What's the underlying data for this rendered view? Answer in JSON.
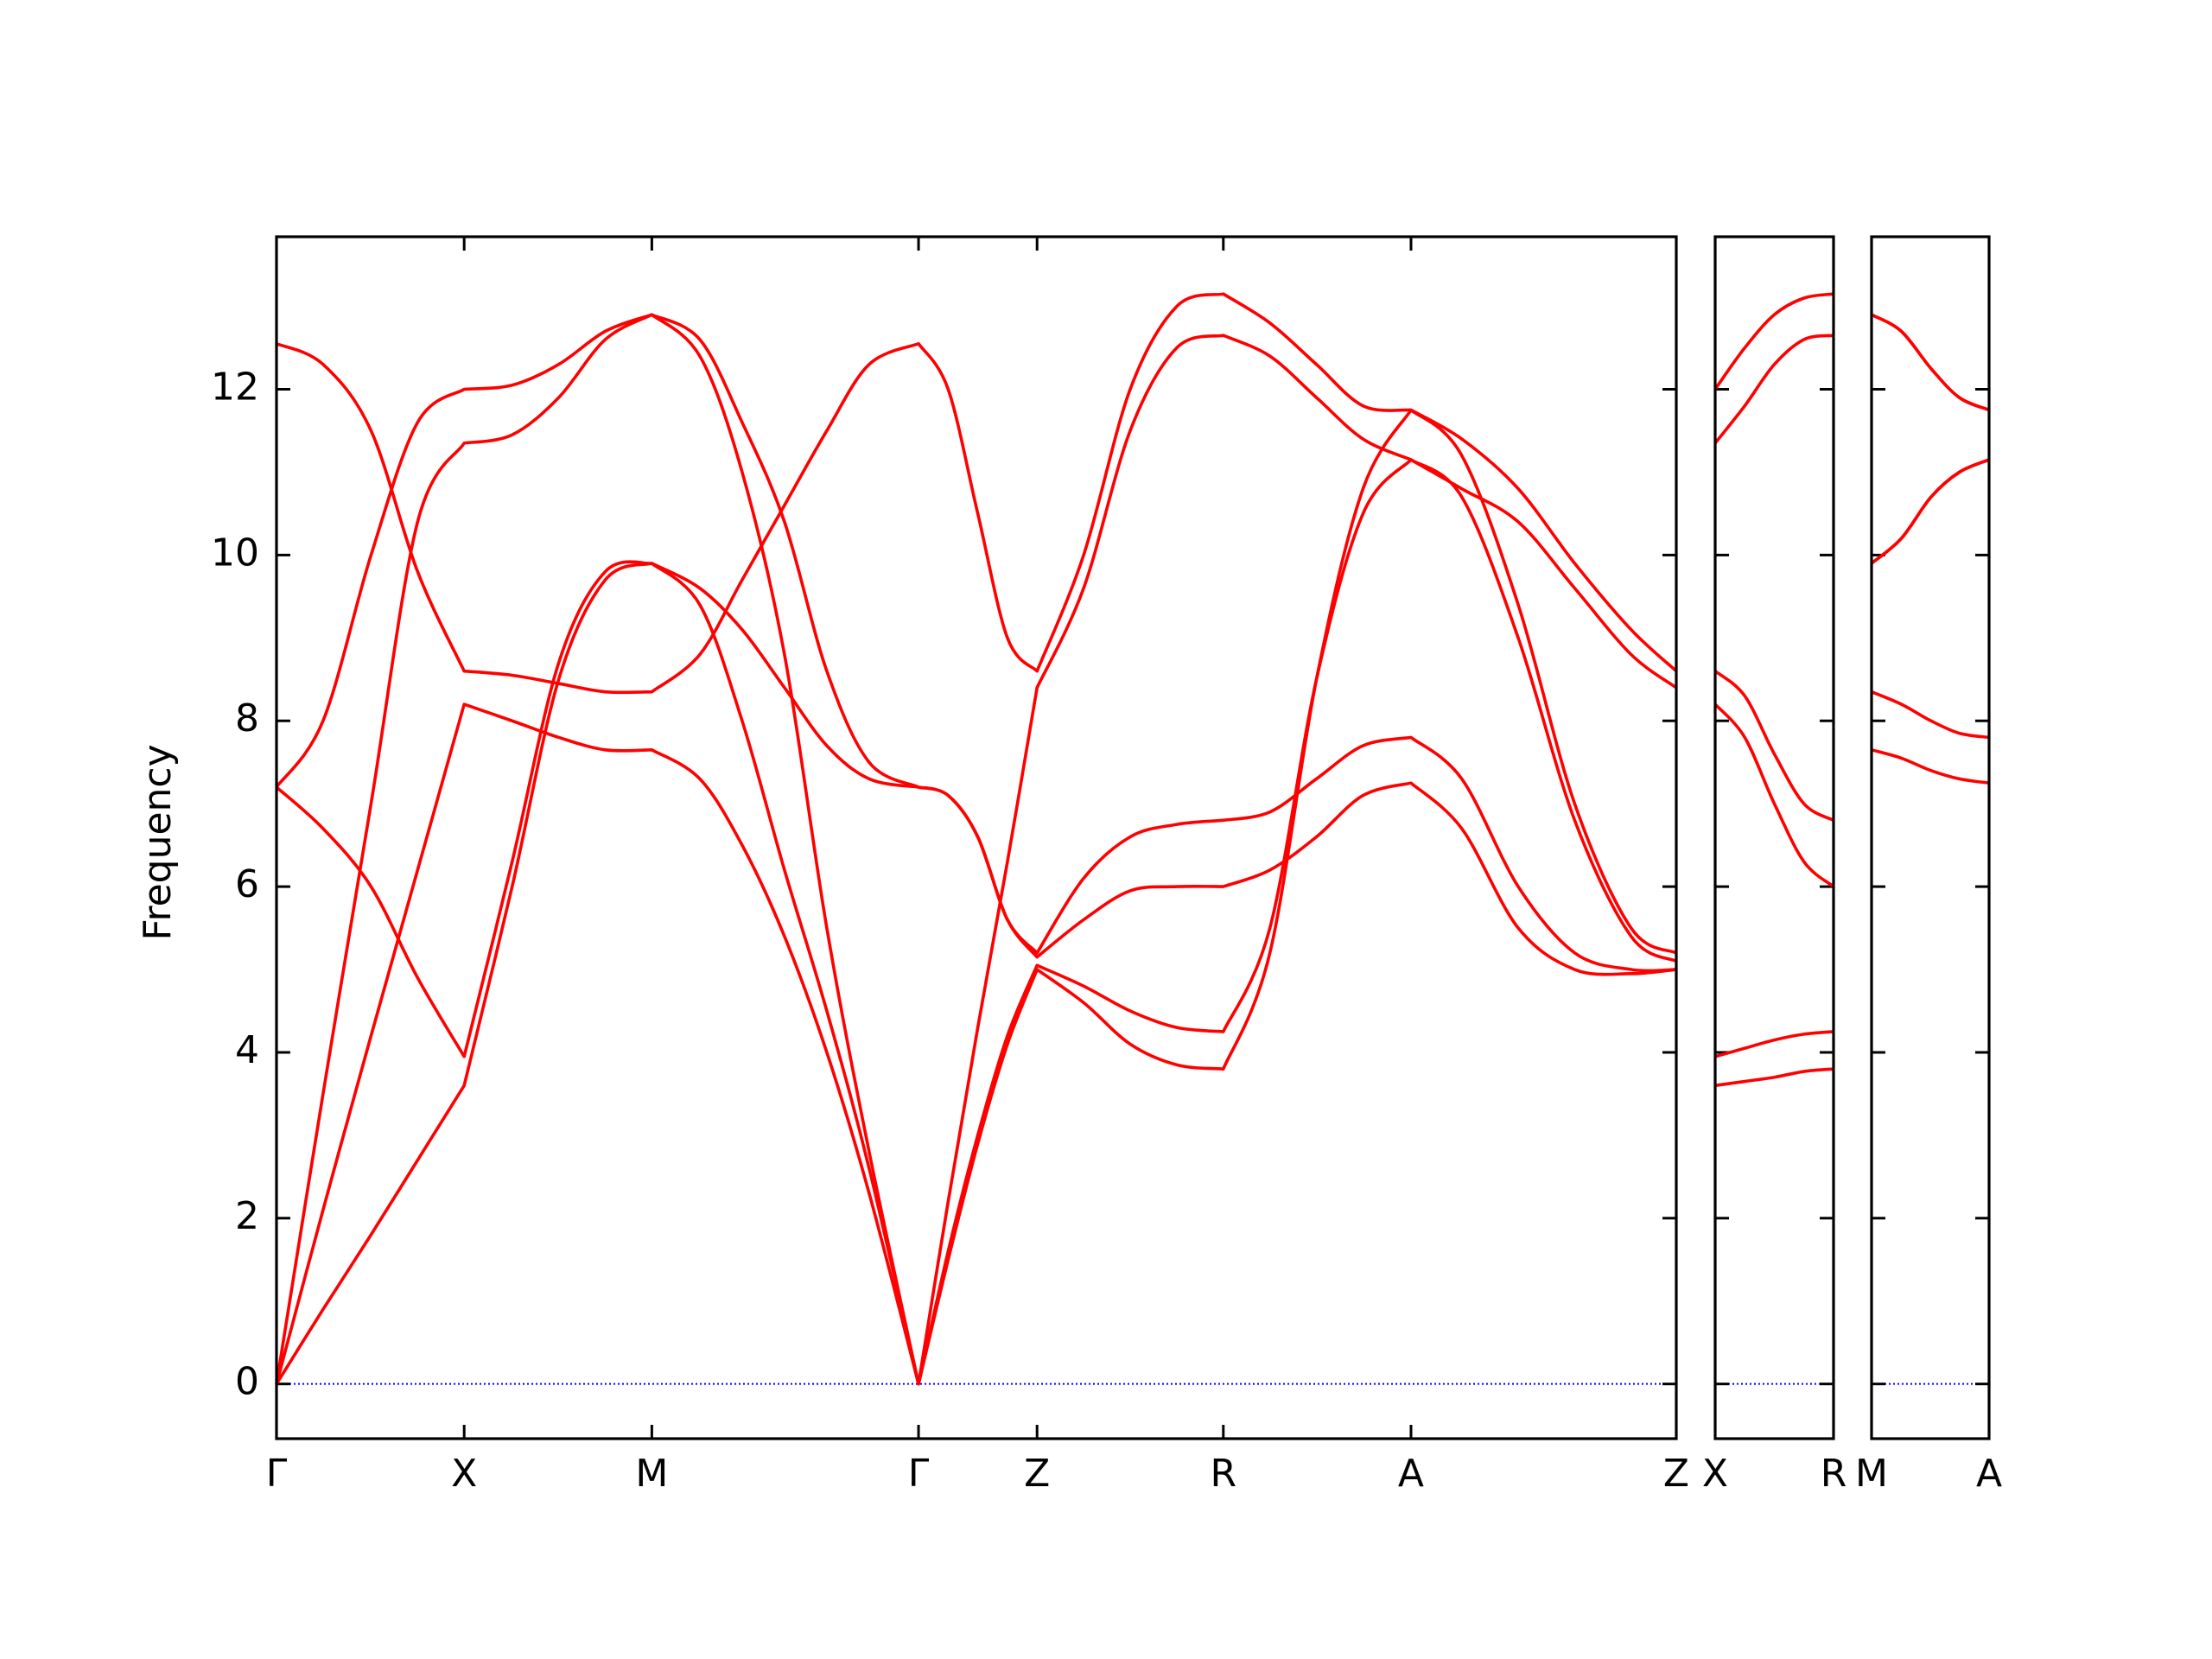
{
  "chart_data": [
    {
      "type": "line",
      "ylabel": "Frequency",
      "color": "#ff0000",
      "hline": 0,
      "hline_color": "#0000ff",
      "ytick_labels": true,
      "xlim": [
        0,
        9.92
      ],
      "ylim": [
        -0.66,
        13.84
      ],
      "yticks": [
        0,
        2,
        4,
        6,
        8,
        10,
        12
      ],
      "xticks": [
        {
          "value": 0,
          "label": "Γ"
        },
        {
          "value": 1.33,
          "label": "X"
        },
        {
          "value": 2.66,
          "label": "M"
        },
        {
          "value": 4.55,
          "label": "Γ"
        },
        {
          "value": 5.39,
          "label": "Z"
        },
        {
          "value": 6.71,
          "label": "R"
        },
        {
          "value": 8.04,
          "label": "A"
        },
        {
          "value": 9.92,
          "label": "Z"
        }
      ],
      "x": [
        0,
        0.33,
        0.67,
        1.0,
        1.33,
        1.67,
        2.0,
        2.33,
        2.66,
        3.0,
        3.3,
        3.6,
        3.9,
        4.2,
        4.55,
        4.76,
        4.97,
        5.18,
        5.39,
        5.72,
        6.05,
        6.38,
        6.71,
        7.04,
        7.37,
        7.7,
        8.04,
        8.4,
        8.8,
        9.2,
        9.6,
        9.92
      ],
      "series": [
        {
          "values": [
            0,
            0.9,
            1.8,
            2.7,
            3.6,
            6.0,
            8.5,
            9.7,
            9.9,
            9.4,
            8.0,
            6.2,
            4.5,
            2.6,
            0,
            1.5,
            2.9,
            4.1,
            5.0,
            4.6,
            4.1,
            3.85,
            3.8,
            5.2,
            8.5,
            10.8,
            11.75,
            11.2,
            9.4,
            7.0,
            5.5,
            5.2
          ]
        },
        {
          "values": [
            0,
            2.1,
            4.2,
            6.2,
            8.2,
            8.0,
            7.8,
            7.65,
            7.65,
            7.3,
            6.5,
            5.4,
            4.0,
            2.3,
            0,
            1.6,
            3.0,
            4.2,
            5.05,
            4.8,
            4.5,
            4.3,
            4.25,
            5.5,
            8.5,
            10.5,
            11.15,
            10.7,
            9.0,
            6.8,
            5.4,
            5.1
          ]
        },
        {
          "values": [
            0,
            3.5,
            7.0,
            10.4,
            11.35,
            11.45,
            11.9,
            12.6,
            12.9,
            12.4,
            11.0,
            8.8,
            5.5,
            2.8,
            0,
            2.2,
            4.3,
            6.3,
            8.4,
            9.6,
            11.5,
            12.5,
            12.65,
            12.4,
            11.9,
            11.4,
            11.15,
            10.8,
            10.4,
            9.6,
            8.8,
            8.4
          ]
        },
        {
          "values": [
            7.2,
            6.7,
            6.0,
            4.9,
            3.95,
            6.3,
            8.7,
            9.8,
            9.9,
            9.6,
            9.1,
            8.4,
            7.7,
            7.3,
            7.2,
            7.1,
            6.6,
            5.6,
            5.15,
            5.6,
            5.95,
            6.0,
            6.0,
            6.2,
            6.6,
            7.1,
            7.25,
            6.7,
            5.5,
            5.0,
            4.95,
            5.0
          ]
        },
        {
          "values": [
            7.2,
            8.0,
            10.0,
            11.6,
            12.0,
            12.05,
            12.3,
            12.7,
            12.9,
            12.6,
            11.6,
            10.4,
            8.6,
            7.5,
            7.2,
            7.1,
            6.6,
            5.6,
            5.2,
            6.1,
            6.6,
            6.75,
            6.8,
            6.9,
            7.3,
            7.7,
            7.8,
            7.3,
            6.0,
            5.2,
            5.0,
            5.0
          ]
        },
        {
          "values": [
            12.55,
            12.3,
            11.5,
            9.8,
            8.6,
            8.55,
            8.45,
            8.35,
            8.35,
            8.8,
            9.7,
            10.6,
            11.5,
            12.3,
            12.55,
            12.0,
            10.5,
            9.0,
            8.6,
            10.0,
            12.0,
            13.0,
            13.15,
            12.8,
            12.3,
            11.8,
            11.75,
            11.4,
            10.8,
            9.9,
            9.1,
            8.6
          ]
        }
      ]
    },
    {
      "type": "line",
      "color": "#ff0000",
      "hline": 0,
      "hline_color": "#0000ff",
      "ytick_labels": false,
      "xlim": [
        0,
        0.84
      ],
      "ylim": [
        -0.66,
        13.84
      ],
      "yticks": [
        0,
        2,
        4,
        6,
        8,
        10,
        12
      ],
      "xticks": [
        {
          "value": 0,
          "label": "X"
        },
        {
          "value": 0.84,
          "label": "R"
        }
      ],
      "x": [
        0,
        0.21,
        0.42,
        0.63,
        0.84
      ],
      "series": [
        {
          "values": [
            3.6,
            3.65,
            3.7,
            3.77,
            3.8
          ]
        },
        {
          "values": [
            3.95,
            4.05,
            4.15,
            4.22,
            4.25
          ]
        },
        {
          "values": [
            8.2,
            7.8,
            7.0,
            6.3,
            6.0
          ]
        },
        {
          "values": [
            8.6,
            8.3,
            7.6,
            7.0,
            6.8
          ]
        },
        {
          "values": [
            11.35,
            11.8,
            12.3,
            12.6,
            12.65
          ]
        },
        {
          "values": [
            12.0,
            12.5,
            12.9,
            13.1,
            13.15
          ]
        }
      ]
    },
    {
      "type": "line",
      "color": "#ff0000",
      "hline": 0,
      "hline_color": "#0000ff",
      "ytick_labels": false,
      "xlim": [
        0,
        0.83
      ],
      "ylim": [
        -0.66,
        13.84
      ],
      "yticks": [
        0,
        2,
        4,
        6,
        8,
        10,
        12
      ],
      "xticks": [
        {
          "value": 0,
          "label": "M"
        },
        {
          "value": 0.83,
          "label": "A"
        }
      ],
      "x": [
        0,
        0.21,
        0.42,
        0.62,
        0.83
      ],
      "series": [
        {
          "values": [
            7.65,
            7.55,
            7.4,
            7.3,
            7.25
          ]
        },
        {
          "values": [
            8.35,
            8.2,
            8.0,
            7.85,
            7.8
          ]
        },
        {
          "values": [
            9.9,
            10.2,
            10.7,
            11.0,
            11.15
          ]
        },
        {
          "values": [
            9.9,
            10.2,
            10.7,
            11.0,
            11.15
          ]
        },
        {
          "values": [
            12.9,
            12.7,
            12.25,
            11.9,
            11.75
          ]
        },
        {
          "values": [
            12.9,
            12.7,
            12.25,
            11.9,
            11.75
          ]
        }
      ]
    }
  ]
}
